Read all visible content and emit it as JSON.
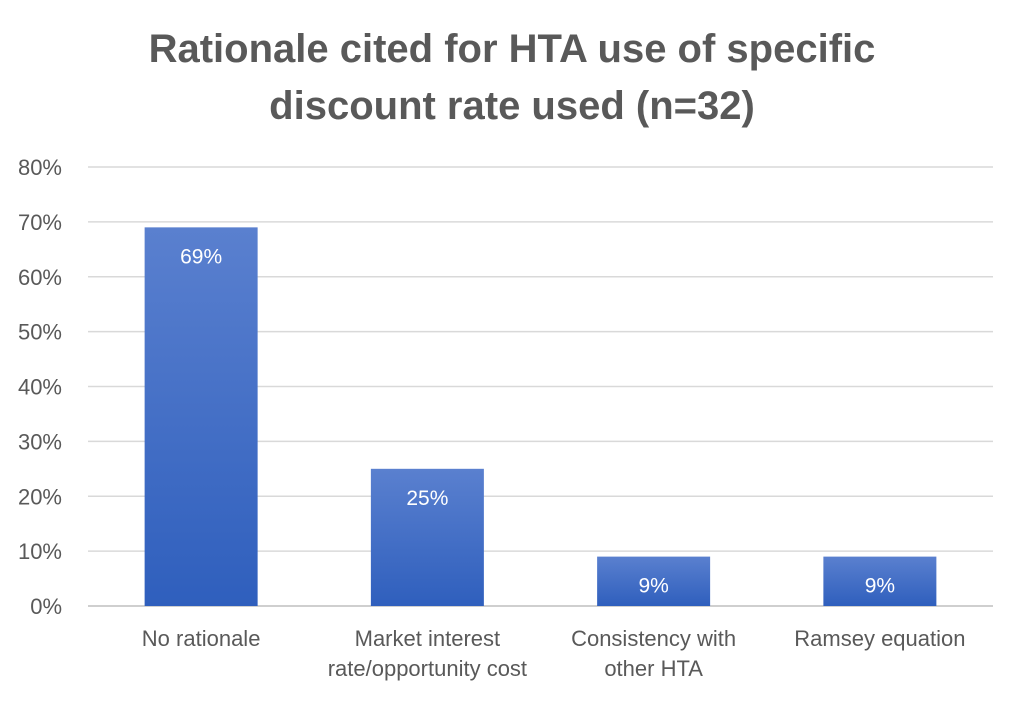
{
  "chart_data": {
    "type": "bar",
    "title_lines": [
      "Rationale cited for HTA use of specific",
      "discount rate used (n=32)"
    ],
    "categories": [
      [
        "No rationale"
      ],
      [
        "Market interest",
        "rate/opportunity cost"
      ],
      [
        "Consistency with",
        "other HTA"
      ],
      [
        "Ramsey equation"
      ]
    ],
    "values": [
      69,
      25,
      9,
      9
    ],
    "data_labels": [
      "69%",
      "25%",
      "9%",
      "9%"
    ],
    "y_ticks": [
      "0%",
      "10%",
      "20%",
      "30%",
      "40%",
      "50%",
      "60%",
      "70%",
      "80%"
    ],
    "ylim": [
      0,
      80
    ],
    "y_unit": "%",
    "grid": true,
    "legend": "none",
    "colors": {
      "bar_top": "#5a80cf",
      "bar_bottom": "#2f5fbd",
      "grid": "#d9d9d9",
      "text": "#595959",
      "data_label": "#ffffff"
    }
  }
}
